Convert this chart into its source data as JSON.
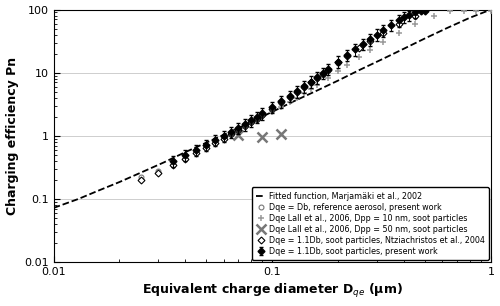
{
  "title": "",
  "xlabel": "Equivalent charge diameter D$_{qe}$ (μm)",
  "ylabel": "Charging efficiency Pn",
  "xlim": [
    0.01,
    1.0
  ],
  "ylim": [
    0.01,
    100
  ],
  "background_color": "#ffffff",
  "fitted_x": [
    0.01,
    0.013,
    0.016,
    0.02,
    0.025,
    0.032,
    0.04,
    0.05,
    0.063,
    0.08,
    0.1,
    0.125,
    0.16,
    0.2,
    0.25,
    0.32,
    0.4,
    0.5,
    0.63,
    0.8,
    1.0
  ],
  "fitted_y": [
    0.072,
    0.1,
    0.135,
    0.185,
    0.26,
    0.38,
    0.55,
    0.78,
    1.12,
    1.65,
    2.4,
    3.5,
    5.2,
    7.5,
    11.0,
    16.5,
    24.0,
    35.0,
    51.0,
    74.0,
    100.0
  ],
  "series1_x": [
    0.035,
    0.04,
    0.045,
    0.05,
    0.055,
    0.06,
    0.065,
    0.07,
    0.075,
    0.08,
    0.085,
    0.09,
    0.1,
    0.11,
    0.12,
    0.13,
    0.14,
    0.15,
    0.16,
    0.17,
    0.18,
    0.2,
    0.22,
    0.24,
    0.26,
    0.28,
    0.3,
    0.32,
    0.35,
    0.38,
    0.4,
    0.42,
    0.45,
    0.48,
    0.5
  ],
  "series1_y": [
    0.4,
    0.5,
    0.6,
    0.72,
    0.85,
    1.0,
    1.15,
    1.32,
    1.52,
    1.75,
    2.0,
    2.28,
    2.85,
    3.5,
    4.25,
    5.1,
    6.1,
    7.2,
    8.5,
    9.9,
    11.5,
    15.0,
    19.0,
    23.5,
    28.5,
    34.0,
    40.0,
    47.0,
    57.0,
    68.0,
    76.0,
    83.0,
    93.0,
    95.0,
    95.0
  ],
  "series1_yerr_low": [
    0.08,
    0.1,
    0.12,
    0.14,
    0.17,
    0.2,
    0.23,
    0.27,
    0.31,
    0.36,
    0.41,
    0.47,
    0.59,
    0.73,
    0.88,
    1.06,
    1.27,
    1.5,
    1.77,
    2.06,
    2.4,
    3.13,
    3.96,
    4.9,
    5.94,
    7.09,
    8.34,
    9.8,
    11.9,
    14.2,
    15.8,
    17.3,
    19.4,
    0.0,
    0.0
  ],
  "series1_yerr_high": [
    0.08,
    0.1,
    0.12,
    0.14,
    0.17,
    0.2,
    0.23,
    0.27,
    0.31,
    0.36,
    0.41,
    0.47,
    0.59,
    0.73,
    0.88,
    1.06,
    1.27,
    1.5,
    1.77,
    2.06,
    2.4,
    3.13,
    3.96,
    4.9,
    5.94,
    7.09,
    8.34,
    9.8,
    11.9,
    14.2,
    15.8,
    12.0,
    7.0,
    5.0,
    5.0
  ],
  "series2_x": [
    0.025,
    0.03,
    0.035,
    0.04,
    0.045,
    0.05,
    0.055,
    0.06,
    0.065,
    0.07,
    0.075,
    0.08,
    0.085,
    0.09,
    0.1,
    0.11,
    0.12,
    0.13,
    0.14,
    0.15,
    0.16,
    0.17,
    0.18,
    0.2,
    0.22,
    0.25,
    0.28,
    0.32,
    0.38,
    0.45
  ],
  "series2_y": [
    0.2,
    0.26,
    0.34,
    0.43,
    0.53,
    0.64,
    0.76,
    0.9,
    1.05,
    1.22,
    1.42,
    1.63,
    1.87,
    2.14,
    2.7,
    3.38,
    4.15,
    5.0,
    5.95,
    7.05,
    8.25,
    9.6,
    11.1,
    14.5,
    18.5,
    24.5,
    31.5,
    42.0,
    58.0,
    78.0
  ],
  "series3_x": [
    0.07,
    0.09,
    0.11
  ],
  "series3_y": [
    1.02,
    0.95,
    1.05
  ],
  "series4_x": [
    0.06,
    0.07,
    0.08,
    0.09,
    0.1,
    0.11,
    0.12,
    0.13,
    0.14,
    0.15,
    0.16,
    0.18,
    0.2,
    0.22,
    0.25,
    0.28,
    0.32,
    0.38,
    0.45,
    0.55,
    0.65,
    0.75,
    0.85,
    1.0
  ],
  "series4_y": [
    0.95,
    1.25,
    1.58,
    1.95,
    2.38,
    2.85,
    3.4,
    4.0,
    4.7,
    5.45,
    6.3,
    8.3,
    10.6,
    13.2,
    17.5,
    22.5,
    30.5,
    42.5,
    58.0,
    80.0,
    95.0,
    95.0,
    95.0,
    95.0
  ],
  "series5_x": [
    0.025,
    0.03,
    0.035,
    0.04,
    0.045,
    0.05,
    0.055,
    0.06,
    0.065,
    0.07,
    0.075,
    0.08,
    0.085,
    0.09,
    0.1,
    0.11,
    0.12,
    0.13,
    0.14,
    0.15,
    0.16,
    0.17,
    0.18,
    0.2
  ],
  "series5_y": [
    0.22,
    0.28,
    0.36,
    0.45,
    0.55,
    0.66,
    0.78,
    0.92,
    1.07,
    1.24,
    1.42,
    1.63,
    1.87,
    2.12,
    2.68,
    3.35,
    4.1,
    4.95,
    5.9,
    6.98,
    8.15,
    9.45,
    11.0,
    14.2
  ],
  "legend_entries": [
    "Dqe = 1.1Db, soot particles, present work",
    "Dqe = 1.1Db, soot particles, Ntziachristos et al., 2004",
    "Dqe Lall et al., 2006, Dpp = 50 nm, soot particles",
    "Dqe Lall et al., 2006, Dpp = 10 nm, soot particles",
    "Dqe = Db, reference aerosol, present work",
    "Fitted function, Marjamäki et al., 2002"
  ],
  "series1_color": "#000000",
  "series2_color": "#000000",
  "series3_color": "#777777",
  "series4_color": "#999999",
  "series5_color": "#777777",
  "fitted_color": "#000000"
}
